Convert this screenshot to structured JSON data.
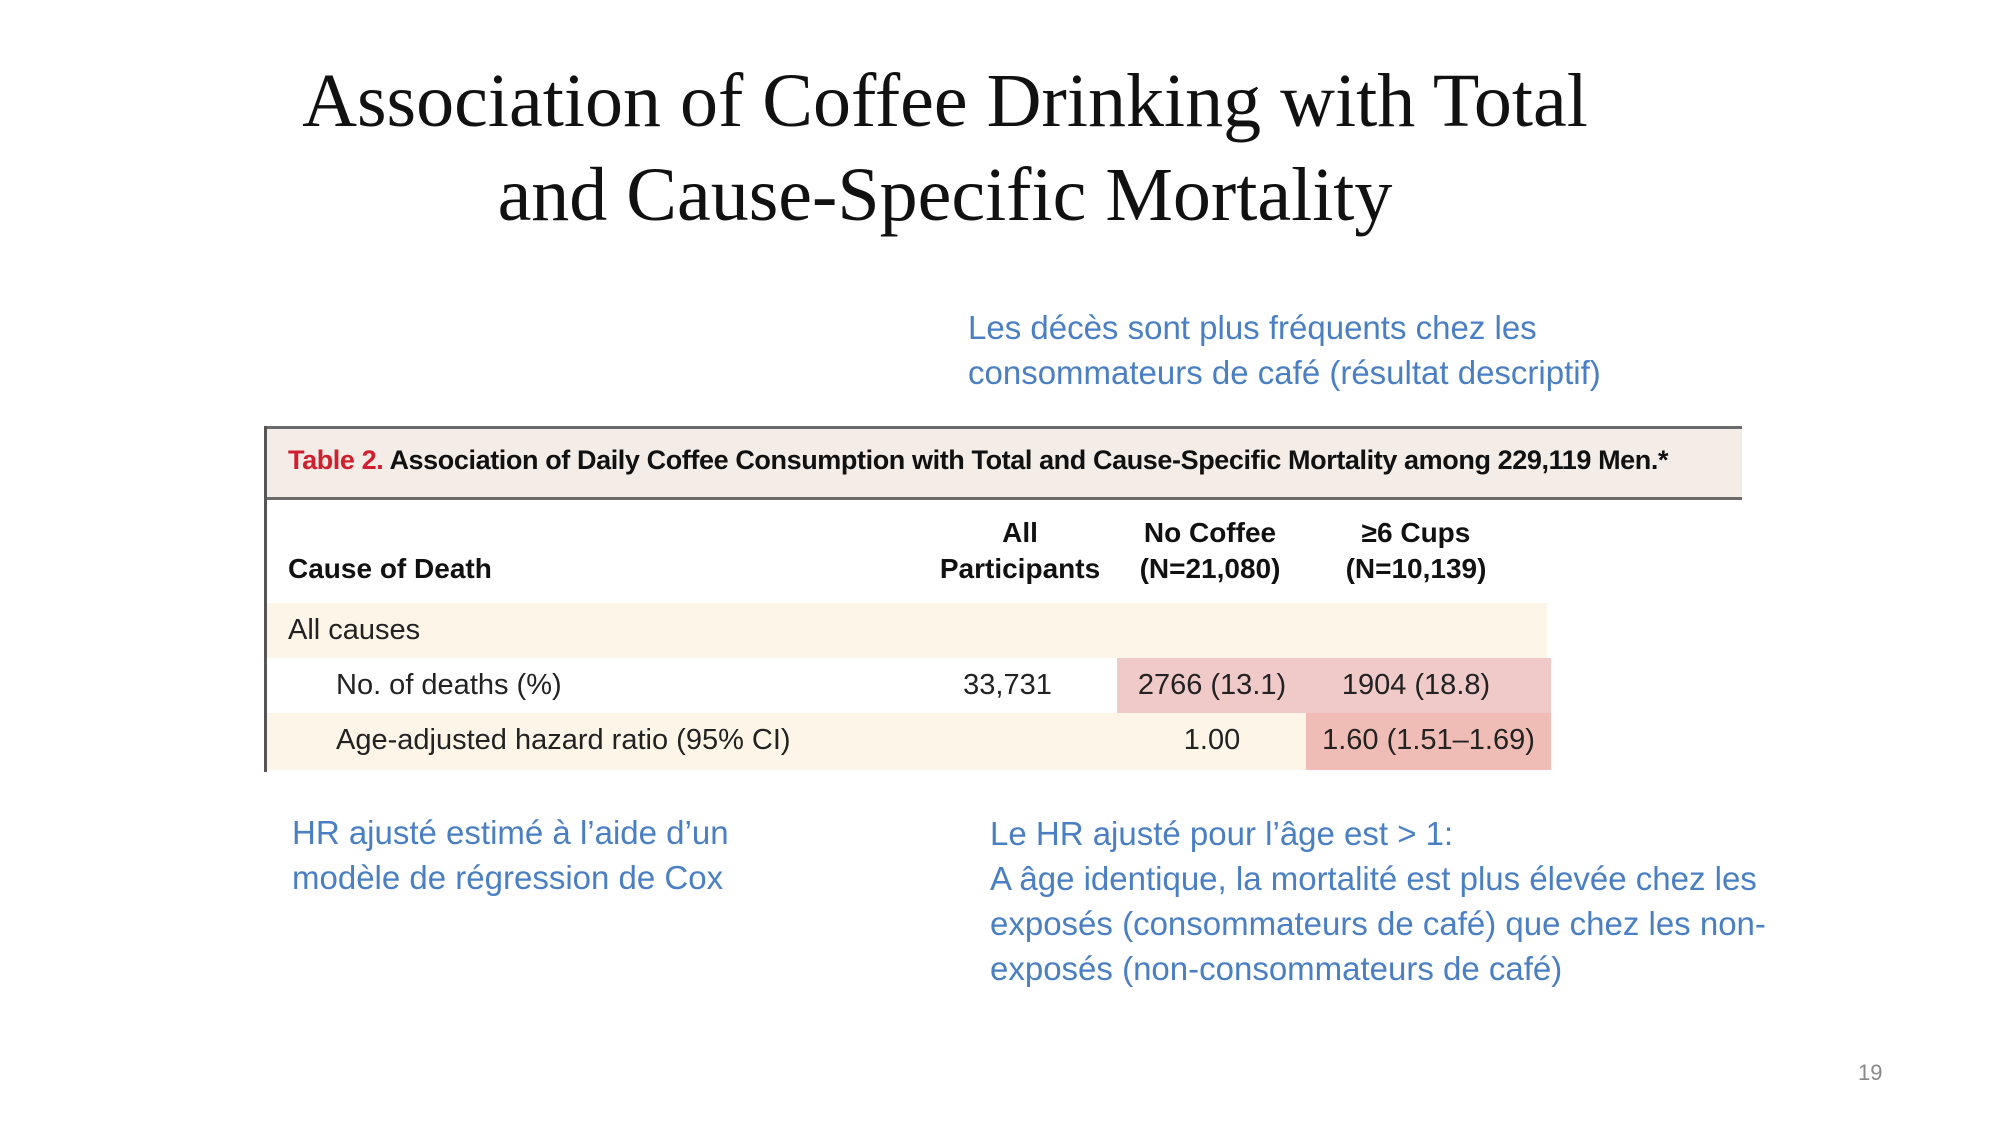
{
  "slide": {
    "title_line1": "Association of Coffee Drinking with Total",
    "title_line2": "and Cause-Specific Mortality",
    "page_number": "19"
  },
  "notes": {
    "top_right": [
      "Les décès sont plus fréquents chez les",
      "consommateurs de café (résultat descriptif)"
    ],
    "bottom_left": [
      "HR ajusté estimé à l’aide d’un",
      "modèle de régression de Cox"
    ],
    "bottom_right": [
      "Le HR ajusté pour l’âge est > 1:",
      "A âge identique, la mortalité est plus élevée chez les",
      "exposés (consommateurs de café) que chez les non-",
      "exposés (non-consommateurs de café)"
    ]
  },
  "table": {
    "label": "Table 2.",
    "caption": "Association of Daily Coffee Consumption with Total and Cause-Specific Mortality among 229,119 Men.*",
    "headers": {
      "cause": "Cause of Death",
      "all": [
        "All",
        "Participants"
      ],
      "no_coffee": [
        "No Coffee",
        "(N=21,080)"
      ],
      "six_cups": [
        "≥6 Cups",
        "(N=10,139)"
      ]
    },
    "rows": [
      {
        "label": "All causes",
        "all": "",
        "no_coffee": "",
        "six_cups": ""
      },
      {
        "label": "No. of deaths (%)",
        "all": "33,731",
        "no_coffee": "2766 (13.1)",
        "six_cups": "1904 (18.8)"
      },
      {
        "label": "Age-adjusted hazard ratio (95% CI)",
        "all": "",
        "no_coffee": "1.00",
        "six_cups": "1.60 (1.51–1.69)"
      }
    ]
  },
  "colors": {
    "note_text": "#4a7fc4",
    "table_label": "#d0202e",
    "highlight": "#f0c9c9",
    "row_cream": "#fdf5e7"
  }
}
